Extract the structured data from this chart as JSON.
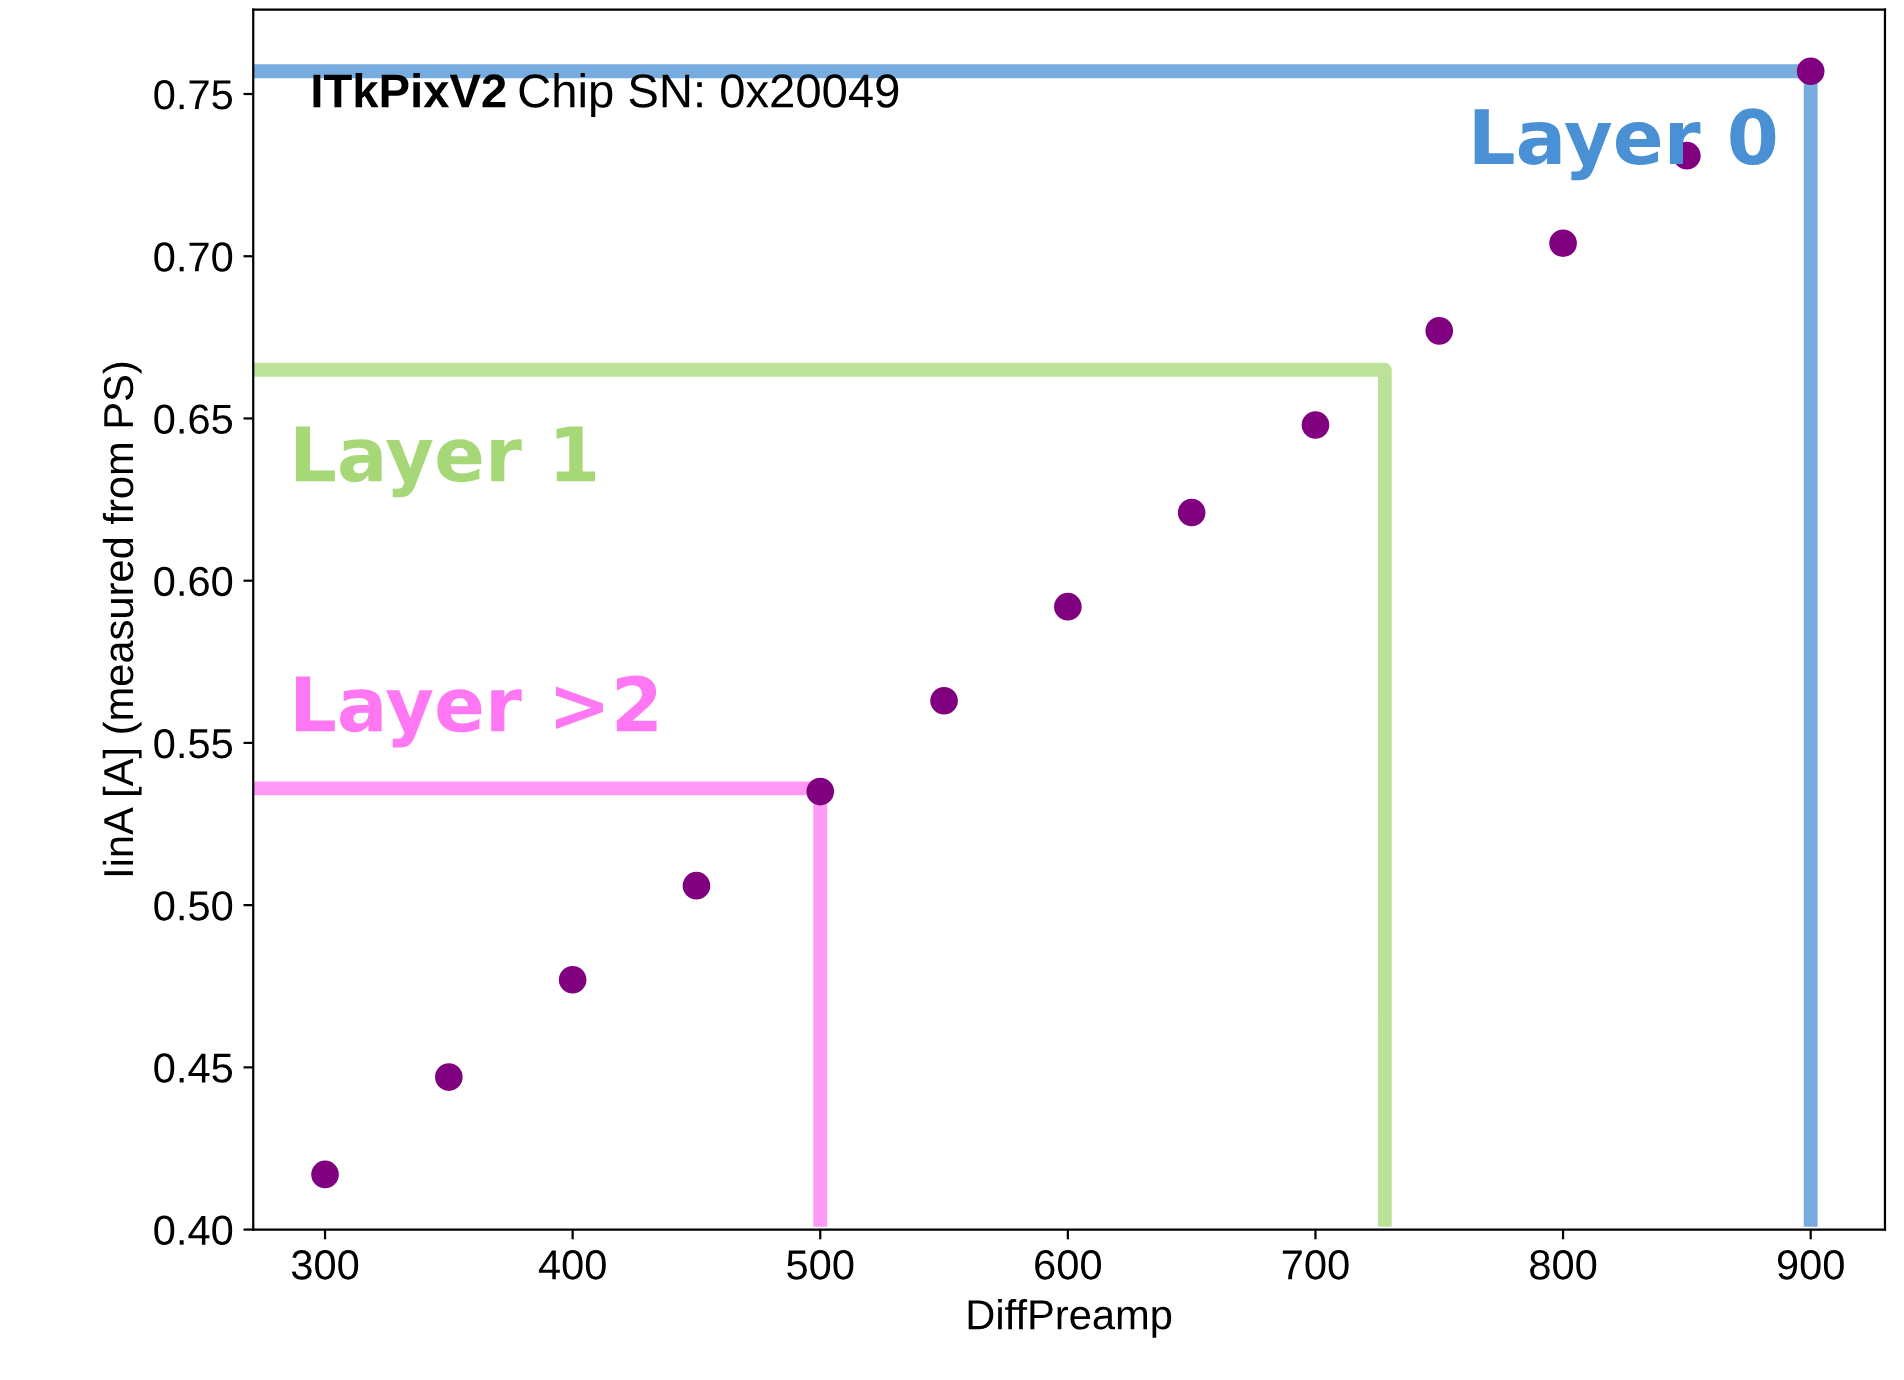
{
  "chart_data": {
    "type": "scatter",
    "xlabel": "DiffPreamp",
    "ylabel": "IinA [A] (measured from PS)",
    "annotations": [
      "ITkPixV2",
      "Chip SN: 0x20049"
    ],
    "xlim": [
      271,
      930
    ],
    "ylim": [
      0.4,
      0.776
    ],
    "xticks": [
      300,
      400,
      500,
      600,
      700,
      800,
      900
    ],
    "yticks": [
      {
        "value": 0.4,
        "label": "0.40"
      },
      {
        "value": 0.45,
        "label": "0.45"
      },
      {
        "value": 0.5,
        "label": "0.50"
      },
      {
        "value": 0.55,
        "label": "0.55"
      },
      {
        "value": 0.6,
        "label": "0.60"
      },
      {
        "value": 0.65,
        "label": "0.65"
      },
      {
        "value": 0.7,
        "label": "0.70"
      },
      {
        "value": 0.75,
        "label": "0.75"
      }
    ],
    "grid": false,
    "legend": false,
    "marker": "circle",
    "series": [
      {
        "color": "#800080",
        "x": [
          300,
          350,
          400,
          450,
          500,
          550,
          600,
          650,
          700,
          750,
          800,
          850,
          900
        ],
        "values": [
          0.417,
          0.447,
          0.477,
          0.506,
          0.535,
          0.563,
          0.592,
          0.621,
          0.648,
          0.677,
          0.704,
          0.731,
          0.757
        ]
      },
      {
        "type": "line",
        "name": "Layer 0",
        "color": "#4a90d4",
        "marker": "none",
        "line_style": "solid",
        "x": [
          271,
          900,
          900
        ],
        "values": [
          0.757,
          0.757,
          0.403
        ]
      },
      {
        "type": "line",
        "name": "Layer 1",
        "color": "#a6d878",
        "marker": "none",
        "line_style": "solid",
        "x": [
          273,
          728,
          728
        ],
        "values": [
          0.665,
          0.665,
          0.403
        ]
      },
      {
        "type": "line",
        "name": "Layer >2",
        "color": "#ff77f2",
        "marker": "none",
        "line_style": "solid",
        "x": [
          271,
          500,
          500
        ],
        "values": [
          0.536,
          0.536,
          0.403
        ]
      }
    ]
  }
}
